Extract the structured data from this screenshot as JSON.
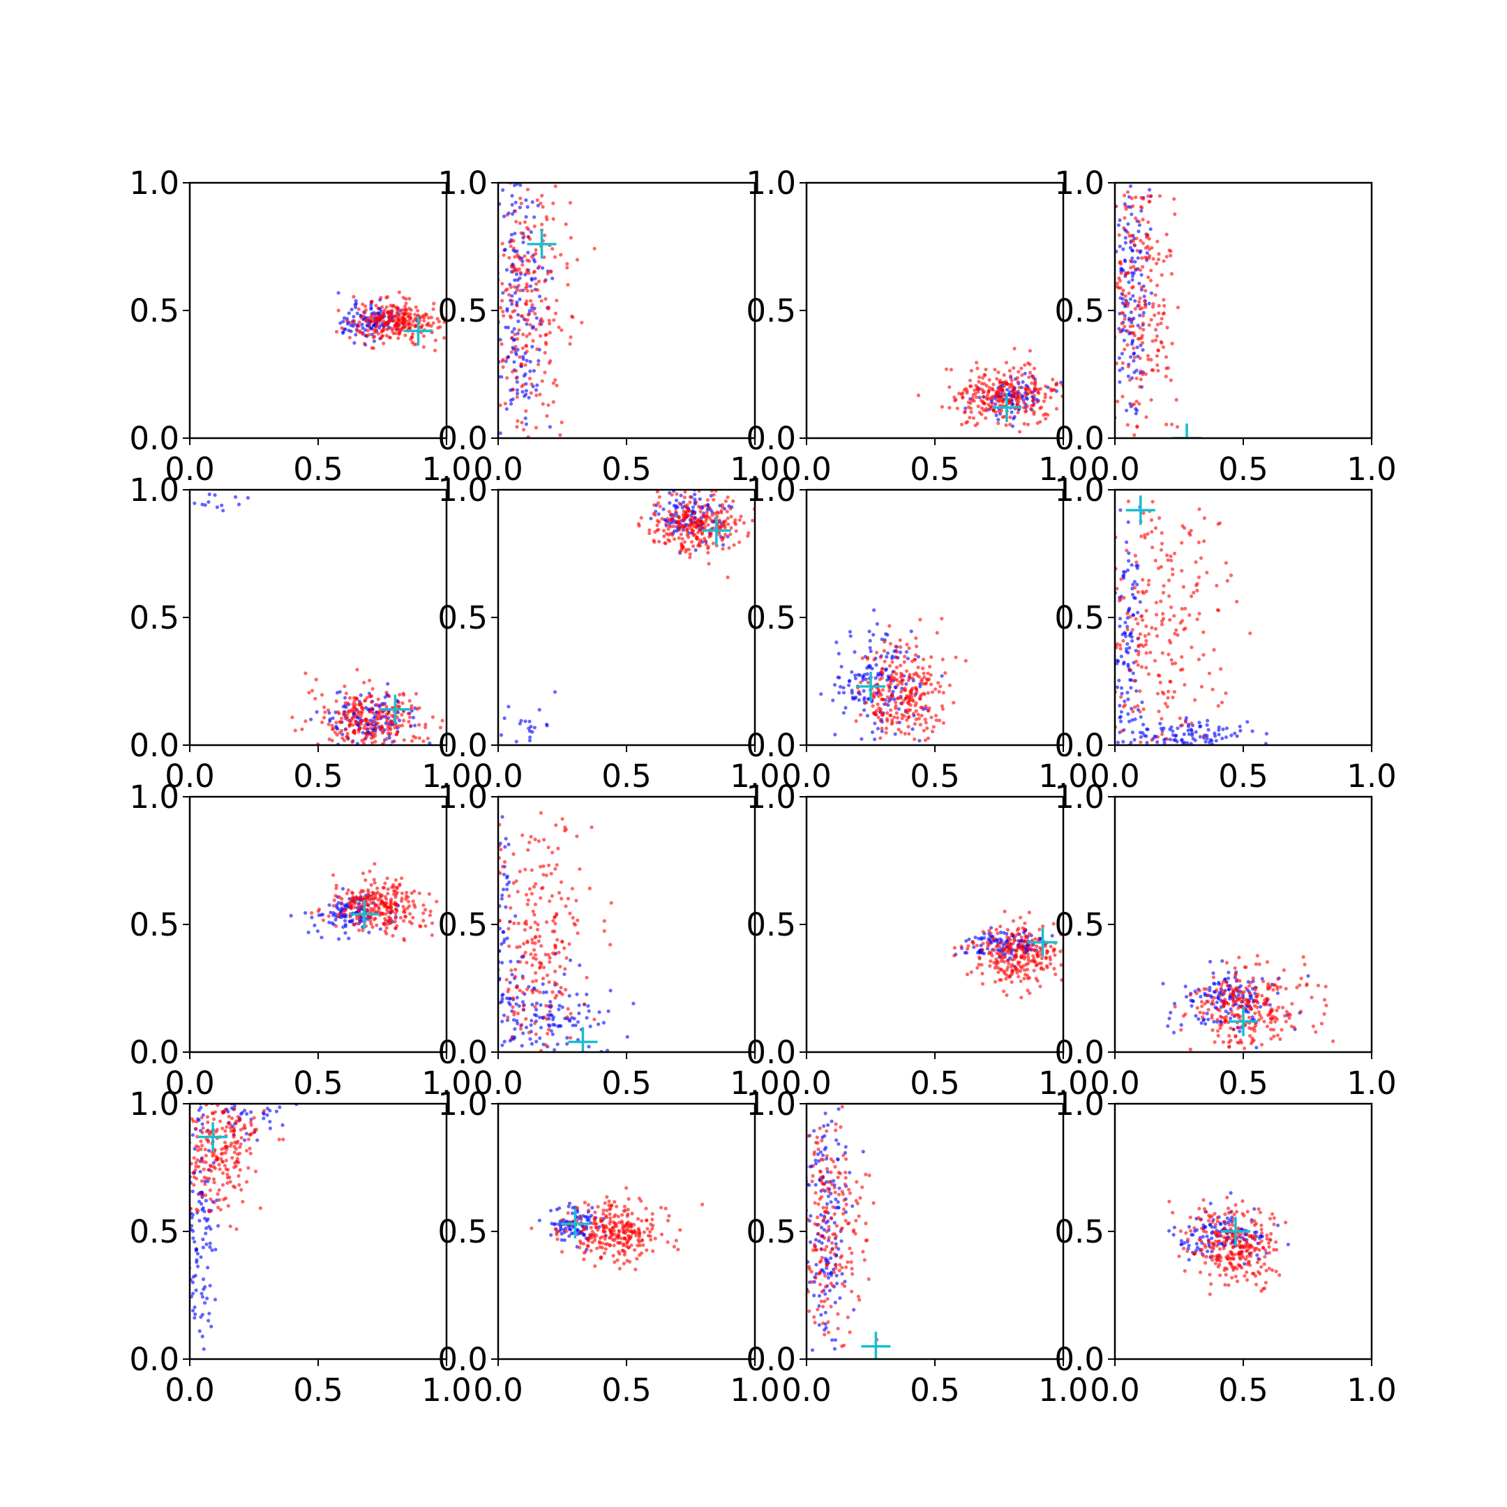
{
  "chart_data": {
    "type": "scatter",
    "layout": "4x4 grid of scatter subplots",
    "grid": false,
    "legend": "none",
    "x_ticks": [
      "0.0",
      "0.5",
      "1.0"
    ],
    "y_ticks": [
      "0.0",
      "0.5",
      "1.0"
    ],
    "xlim": [
      0,
      1
    ],
    "ylim": [
      0,
      1
    ],
    "colors": {
      "series_blue": "#0000ff",
      "series_red": "#ff0000",
      "marker": "#17becf"
    },
    "series_names": [
      "blue",
      "red"
    ],
    "marker_style": "plus",
    "panels": [
      {
        "row": 0,
        "col": 0,
        "blue": [
          {
            "cx": 0.7,
            "cy": 0.46,
            "sx": 0.07,
            "sy": 0.035,
            "n": 110
          }
        ],
        "red": [
          {
            "cx": 0.8,
            "cy": 0.46,
            "sx": 0.09,
            "sy": 0.04,
            "n": 260
          }
        ],
        "marker": [
          0.89,
          0.42
        ]
      },
      {
        "row": 0,
        "col": 1,
        "blue": [
          {
            "cx": 0.08,
            "cy": 0.5,
            "sx": 0.05,
            "sy": 0.28,
            "n": 170
          }
        ],
        "red": [
          {
            "cx": 0.12,
            "cy": 0.5,
            "sx": 0.08,
            "sy": 0.28,
            "n": 240
          }
        ],
        "marker": [
          0.17,
          0.76
        ]
      },
      {
        "row": 0,
        "col": 2,
        "blue": [
          {
            "cx": 0.8,
            "cy": 0.16,
            "sx": 0.07,
            "sy": 0.04,
            "n": 90
          }
        ],
        "red": [
          {
            "cx": 0.78,
            "cy": 0.17,
            "sx": 0.11,
            "sy": 0.06,
            "n": 270
          }
        ],
        "marker": [
          0.78,
          0.12
        ]
      },
      {
        "row": 0,
        "col": 3,
        "blue": [
          {
            "cx": 0.06,
            "cy": 0.55,
            "sx": 0.04,
            "sy": 0.28,
            "n": 160
          }
        ],
        "red": [
          {
            "cx": 0.1,
            "cy": 0.55,
            "sx": 0.07,
            "sy": 0.28,
            "n": 230
          }
        ],
        "marker": [
          0.28,
          0.0
        ]
      },
      {
        "row": 1,
        "col": 0,
        "blue": [
          {
            "cx": 0.7,
            "cy": 0.1,
            "sx": 0.08,
            "sy": 0.05,
            "n": 120
          },
          {
            "cx": 0.08,
            "cy": 0.96,
            "sx": 0.05,
            "sy": 0.02,
            "n": 12
          }
        ],
        "red": [
          {
            "cx": 0.7,
            "cy": 0.1,
            "sx": 0.11,
            "sy": 0.06,
            "n": 260
          }
        ],
        "marker": [
          0.8,
          0.14
        ]
      },
      {
        "row": 1,
        "col": 1,
        "blue": [
          {
            "cx": 0.75,
            "cy": 0.88,
            "sx": 0.07,
            "sy": 0.05,
            "n": 110
          },
          {
            "cx": 0.12,
            "cy": 0.08,
            "sx": 0.05,
            "sy": 0.05,
            "n": 20
          }
        ],
        "red": [
          {
            "cx": 0.78,
            "cy": 0.87,
            "sx": 0.09,
            "sy": 0.06,
            "n": 260
          }
        ],
        "marker": [
          0.85,
          0.84
        ]
      },
      {
        "row": 1,
        "col": 2,
        "blue": [
          {
            "cx": 0.28,
            "cy": 0.24,
            "sx": 0.09,
            "sy": 0.11,
            "n": 150
          }
        ],
        "red": [
          {
            "cx": 0.38,
            "cy": 0.2,
            "sx": 0.09,
            "sy": 0.1,
            "n": 260
          }
        ],
        "marker": [
          0.25,
          0.23
        ]
      },
      {
        "row": 1,
        "col": 3,
        "blue": [
          {
            "cx": 0.05,
            "cy": 0.4,
            "sx": 0.03,
            "sy": 0.28,
            "n": 110
          },
          {
            "cx": 0.3,
            "cy": 0.04,
            "sx": 0.14,
            "sy": 0.03,
            "n": 100
          }
        ],
        "red": [
          {
            "cx": 0.18,
            "cy": 0.45,
            "sx": 0.12,
            "sy": 0.28,
            "n": 240
          }
        ],
        "marker": [
          0.1,
          0.92
        ]
      },
      {
        "row": 2,
        "col": 0,
        "blue": [
          {
            "cx": 0.62,
            "cy": 0.54,
            "sx": 0.07,
            "sy": 0.035,
            "n": 110
          }
        ],
        "red": [
          {
            "cx": 0.75,
            "cy": 0.57,
            "sx": 0.1,
            "sy": 0.05,
            "n": 260
          }
        ],
        "marker": [
          0.68,
          0.54
        ]
      },
      {
        "row": 2,
        "col": 1,
        "blue": [
          {
            "cx": 0.15,
            "cy": 0.15,
            "sx": 0.12,
            "sy": 0.1,
            "n": 150
          },
          {
            "cx": 0.03,
            "cy": 0.5,
            "sx": 0.02,
            "sy": 0.25,
            "n": 50
          }
        ],
        "red": [
          {
            "cx": 0.15,
            "cy": 0.45,
            "sx": 0.1,
            "sy": 0.28,
            "n": 240
          }
        ],
        "marker": [
          0.33,
          0.04
        ]
      },
      {
        "row": 2,
        "col": 2,
        "blue": [
          {
            "cx": 0.78,
            "cy": 0.42,
            "sx": 0.08,
            "sy": 0.03,
            "n": 110
          }
        ],
        "red": [
          {
            "cx": 0.82,
            "cy": 0.38,
            "sx": 0.09,
            "sy": 0.06,
            "n": 260
          }
        ],
        "marker": [
          0.92,
          0.43
        ]
      },
      {
        "row": 2,
        "col": 3,
        "blue": [
          {
            "cx": 0.45,
            "cy": 0.2,
            "sx": 0.11,
            "sy": 0.06,
            "n": 140
          }
        ],
        "red": [
          {
            "cx": 0.52,
            "cy": 0.17,
            "sx": 0.12,
            "sy": 0.08,
            "n": 260
          }
        ],
        "marker": [
          0.5,
          0.12
        ]
      },
      {
        "row": 3,
        "col": 0,
        "blue": [
          {
            "cx": 0.04,
            "cy": 0.5,
            "sx": 0.03,
            "sy": 0.28,
            "n": 130
          },
          {
            "cx": 0.22,
            "cy": 0.95,
            "sx": 0.08,
            "sy": 0.04,
            "n": 40
          }
        ],
        "red": [
          {
            "cx": 0.12,
            "cy": 0.82,
            "sx": 0.09,
            "sy": 0.12,
            "n": 240
          }
        ],
        "marker": [
          0.09,
          0.87
        ]
      },
      {
        "row": 3,
        "col": 1,
        "blue": [
          {
            "cx": 0.3,
            "cy": 0.53,
            "sx": 0.05,
            "sy": 0.04,
            "n": 90
          }
        ],
        "red": [
          {
            "cx": 0.46,
            "cy": 0.5,
            "sx": 0.1,
            "sy": 0.06,
            "n": 270
          }
        ],
        "marker": [
          0.3,
          0.53
        ]
      },
      {
        "row": 3,
        "col": 2,
        "blue": [
          {
            "cx": 0.07,
            "cy": 0.5,
            "sx": 0.05,
            "sy": 0.28,
            "n": 170
          }
        ],
        "red": [
          {
            "cx": 0.09,
            "cy": 0.5,
            "sx": 0.07,
            "sy": 0.28,
            "n": 220
          }
        ],
        "marker": [
          0.27,
          0.05
        ]
      },
      {
        "row": 3,
        "col": 3,
        "blue": [
          {
            "cx": 0.42,
            "cy": 0.48,
            "sx": 0.09,
            "sy": 0.05,
            "n": 120
          }
        ],
        "red": [
          {
            "cx": 0.46,
            "cy": 0.44,
            "sx": 0.09,
            "sy": 0.08,
            "n": 270
          }
        ],
        "marker": [
          0.47,
          0.5
        ]
      }
    ]
  }
}
